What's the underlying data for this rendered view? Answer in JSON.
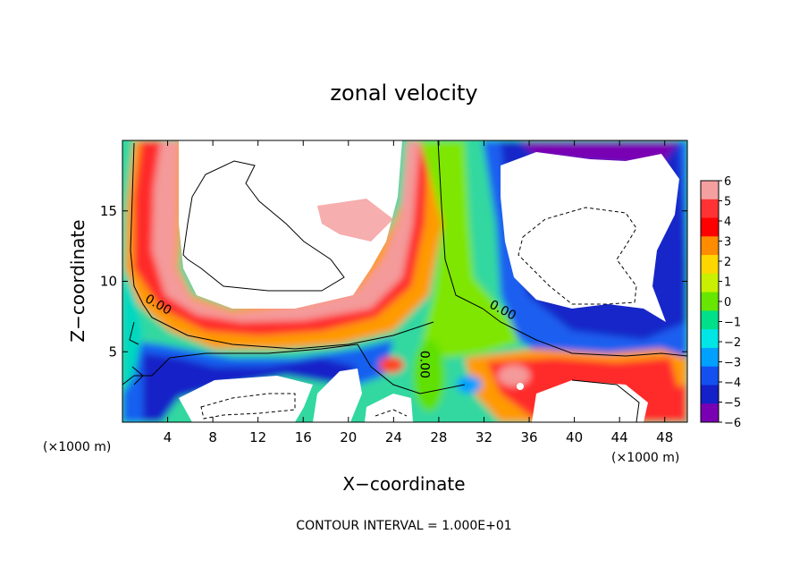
{
  "chart_data": {
    "type": "heatmap",
    "title": "zonal velocity",
    "xlabel": "X−coordinate",
    "ylabel": "Z−coordinate",
    "x_unit_left": "(×1000 m)",
    "x_unit_right": "(×1000 m)",
    "xlim": [
      0,
      50
    ],
    "ylim": [
      0,
      20
    ],
    "x_ticks": [
      4,
      8,
      12,
      16,
      20,
      24,
      28,
      32,
      36,
      40,
      44,
      48
    ],
    "x_tick_labels": [
      "4",
      "8",
      "12",
      "16",
      "20",
      "24",
      "28",
      "32",
      "36",
      "40",
      "44",
      "48"
    ],
    "y_ticks": [
      5,
      10,
      15
    ],
    "y_tick_labels": [
      "5",
      "10",
      "15"
    ],
    "colorbar": {
      "levels": [
        6,
        5,
        4,
        3,
        2,
        1,
        0,
        -1,
        -2,
        -3,
        -4,
        -5,
        -6
      ],
      "labels": [
        "6",
        "5",
        "4",
        "3",
        "2",
        "1",
        "0",
        "−1",
        "−2",
        "−3",
        "−4",
        "−5",
        "−6"
      ],
      "colors": [
        "#f4a0a0",
        "#ff3333",
        "#ff0000",
        "#ff8c00",
        "#ffd700",
        "#c8f000",
        "#66e600",
        "#00e08a",
        "#00e6e6",
        "#00a0ff",
        "#1450f0",
        "#1420c8",
        "#7a00b4"
      ],
      "above_range_color": "#ffffff"
    },
    "contour_labels": [
      {
        "text": "0.00",
        "x": 3.0,
        "y": 8.1,
        "rotation": 30
      },
      {
        "text": "0.00",
        "x": 33.5,
        "y": 7.7,
        "rotation": 28
      },
      {
        "text": "0.00",
        "x": 26.4,
        "y": 4.1,
        "rotation": 90
      }
    ],
    "footer": "CONTOUR INTERVAL = 1.000E+01"
  }
}
